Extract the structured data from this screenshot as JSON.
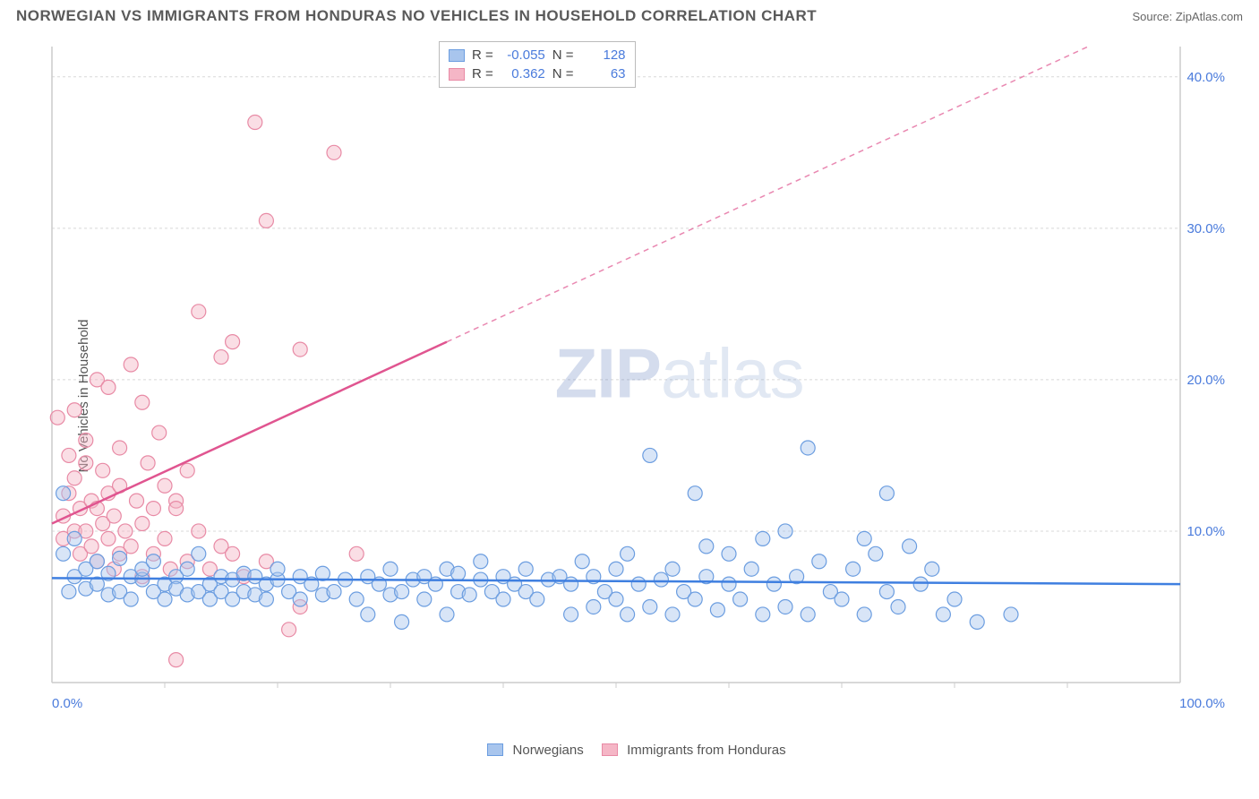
{
  "title": "NORWEGIAN VS IMMIGRANTS FROM HONDURAS NO VEHICLES IN HOUSEHOLD CORRELATION CHART",
  "source": "Source: ZipAtlas.com",
  "y_axis_label": "No Vehicles in Household",
  "watermark_a": "ZIP",
  "watermark_b": "atlas",
  "chart": {
    "type": "scatter",
    "xlim": [
      0,
      100
    ],
    "ylim": [
      0,
      42
    ],
    "x_ticks": [
      0,
      100
    ],
    "x_tick_labels": [
      "0.0%",
      "100.0%"
    ],
    "x_minor_ticks": [
      10,
      20,
      30,
      40,
      50,
      60,
      70,
      80,
      90
    ],
    "y_ticks": [
      10,
      20,
      30,
      40
    ],
    "y_tick_labels": [
      "10.0%",
      "20.0%",
      "30.0%",
      "40.0%"
    ],
    "grid_color": "#d8d8d8",
    "axis_color": "#cccccc",
    "background_color": "#ffffff",
    "marker_radius": 8,
    "marker_opacity": 0.45,
    "line_width": 2.5,
    "series": [
      {
        "name": "Norwegians",
        "color_fill": "#a8c5ed",
        "color_stroke": "#6b9de0",
        "R": "-0.055",
        "N": "128",
        "trend": {
          "x1": 0,
          "y1": 6.9,
          "x2": 100,
          "y2": 6.5,
          "color": "#3f7fe0"
        },
        "points": [
          [
            1,
            12.5
          ],
          [
            1,
            8.5
          ],
          [
            2,
            7.0
          ],
          [
            2,
            9.5
          ],
          [
            1.5,
            6.0
          ],
          [
            3,
            7.5
          ],
          [
            3,
            6.2
          ],
          [
            4,
            8.0
          ],
          [
            4,
            6.5
          ],
          [
            5,
            7.2
          ],
          [
            5,
            5.8
          ],
          [
            6,
            6.0
          ],
          [
            6,
            8.2
          ],
          [
            7,
            7.0
          ],
          [
            7,
            5.5
          ],
          [
            8,
            6.8
          ],
          [
            8,
            7.5
          ],
          [
            9,
            6.0
          ],
          [
            9,
            8.0
          ],
          [
            10,
            6.5
          ],
          [
            10,
            5.5
          ],
          [
            11,
            7.0
          ],
          [
            11,
            6.2
          ],
          [
            12,
            5.8
          ],
          [
            12,
            7.5
          ],
          [
            13,
            6.0
          ],
          [
            13,
            8.5
          ],
          [
            14,
            6.5
          ],
          [
            14,
            5.5
          ],
          [
            15,
            7.0
          ],
          [
            15,
            6.0
          ],
          [
            16,
            6.8
          ],
          [
            16,
            5.5
          ],
          [
            17,
            7.2
          ],
          [
            17,
            6.0
          ],
          [
            18,
            5.8
          ],
          [
            18,
            7.0
          ],
          [
            19,
            6.5
          ],
          [
            19,
            5.5
          ],
          [
            20,
            6.8
          ],
          [
            20,
            7.5
          ],
          [
            21,
            6.0
          ],
          [
            22,
            5.5
          ],
          [
            22,
            7.0
          ],
          [
            23,
            6.5
          ],
          [
            24,
            5.8
          ],
          [
            24,
            7.2
          ],
          [
            25,
            6.0
          ],
          [
            26,
            6.8
          ],
          [
            27,
            5.5
          ],
          [
            28,
            7.0
          ],
          [
            28,
            4.5
          ],
          [
            29,
            6.5
          ],
          [
            30,
            5.8
          ],
          [
            30,
            7.5
          ],
          [
            31,
            6.0
          ],
          [
            31,
            4.0
          ],
          [
            32,
            6.8
          ],
          [
            33,
            5.5
          ],
          [
            33,
            7.0
          ],
          [
            34,
            6.5
          ],
          [
            35,
            4.5
          ],
          [
            35,
            7.5
          ],
          [
            36,
            6.0
          ],
          [
            36,
            7.2
          ],
          [
            37,
            5.8
          ],
          [
            38,
            6.8
          ],
          [
            38,
            8.0
          ],
          [
            39,
            6.0
          ],
          [
            40,
            7.0
          ],
          [
            40,
            5.5
          ],
          [
            41,
            6.5
          ],
          [
            42,
            7.5
          ],
          [
            42,
            6.0
          ],
          [
            43,
            5.5
          ],
          [
            44,
            6.8
          ],
          [
            45,
            7.0
          ],
          [
            46,
            4.5
          ],
          [
            46,
            6.5
          ],
          [
            47,
            8.0
          ],
          [
            48,
            5.0
          ],
          [
            48,
            7.0
          ],
          [
            49,
            6.0
          ],
          [
            50,
            5.5
          ],
          [
            50,
            7.5
          ],
          [
            51,
            4.5
          ],
          [
            51,
            8.5
          ],
          [
            52,
            6.5
          ],
          [
            53,
            5.0
          ],
          [
            53,
            15.0
          ],
          [
            54,
            6.8
          ],
          [
            55,
            7.5
          ],
          [
            55,
            4.5
          ],
          [
            56,
            6.0
          ],
          [
            57,
            5.5
          ],
          [
            57,
            12.5
          ],
          [
            58,
            7.0
          ],
          [
            59,
            4.8
          ],
          [
            60,
            6.5
          ],
          [
            60,
            8.5
          ],
          [
            61,
            5.5
          ],
          [
            62,
            7.5
          ],
          [
            63,
            4.5
          ],
          [
            63,
            9.5
          ],
          [
            64,
            6.5
          ],
          [
            65,
            5.0
          ],
          [
            66,
            7.0
          ],
          [
            67,
            15.5
          ],
          [
            67,
            4.5
          ],
          [
            68,
            8.0
          ],
          [
            69,
            6.0
          ],
          [
            70,
            5.5
          ],
          [
            71,
            7.5
          ],
          [
            72,
            4.5
          ],
          [
            73,
            8.5
          ],
          [
            74,
            12.5
          ],
          [
            74,
            6.0
          ],
          [
            75,
            5.0
          ],
          [
            76,
            9.0
          ],
          [
            77,
            6.5
          ],
          [
            78,
            7.5
          ],
          [
            79,
            4.5
          ],
          [
            80,
            5.5
          ],
          [
            82,
            4.0
          ],
          [
            85,
            4.5
          ],
          [
            72,
            9.5
          ],
          [
            65,
            10.0
          ],
          [
            58,
            9.0
          ]
        ]
      },
      {
        "name": "Immigrants from Honduras",
        "color_fill": "#f5b6c6",
        "color_stroke": "#e88aa5",
        "R": "0.362",
        "N": "63",
        "trend": {
          "x1": 0,
          "y1": 10.5,
          "x2": 35,
          "y2": 22.5,
          "color": "#e05590",
          "extend_x2": 100,
          "extend_y2": 44.8
        },
        "points": [
          [
            0.5,
            17.5
          ],
          [
            1,
            11.0
          ],
          [
            1,
            9.5
          ],
          [
            1.5,
            15.0
          ],
          [
            1.5,
            12.5
          ],
          [
            2,
            10.0
          ],
          [
            2,
            13.5
          ],
          [
            2,
            18.0
          ],
          [
            2.5,
            8.5
          ],
          [
            2.5,
            11.5
          ],
          [
            3,
            14.5
          ],
          [
            3,
            10.0
          ],
          [
            3,
            16.0
          ],
          [
            3.5,
            9.0
          ],
          [
            3.5,
            12.0
          ],
          [
            4,
            20.0
          ],
          [
            4,
            8.0
          ],
          [
            4,
            11.5
          ],
          [
            4.5,
            10.5
          ],
          [
            4.5,
            14.0
          ],
          [
            5,
            19.5
          ],
          [
            5,
            9.5
          ],
          [
            5,
            12.5
          ],
          [
            5.5,
            7.5
          ],
          [
            5.5,
            11.0
          ],
          [
            6,
            15.5
          ],
          [
            6,
            8.5
          ],
          [
            6,
            13.0
          ],
          [
            6.5,
            10.0
          ],
          [
            7,
            21.0
          ],
          [
            7,
            9.0
          ],
          [
            7.5,
            12.0
          ],
          [
            8,
            18.5
          ],
          [
            8,
            7.0
          ],
          [
            8,
            10.5
          ],
          [
            8.5,
            14.5
          ],
          [
            9,
            8.5
          ],
          [
            9,
            11.5
          ],
          [
            9.5,
            16.5
          ],
          [
            10,
            9.5
          ],
          [
            10,
            13.0
          ],
          [
            10.5,
            7.5
          ],
          [
            11,
            12.0
          ],
          [
            11,
            11.5
          ],
          [
            12,
            14.0
          ],
          [
            12,
            8.0
          ],
          [
            13,
            24.5
          ],
          [
            13,
            10.0
          ],
          [
            14,
            7.5
          ],
          [
            15,
            9.0
          ],
          [
            15,
            21.5
          ],
          [
            16,
            8.5
          ],
          [
            16,
            22.5
          ],
          [
            17,
            7.0
          ],
          [
            18,
            37.0
          ],
          [
            19,
            8.0
          ],
          [
            19,
            30.5
          ],
          [
            21,
            3.5
          ],
          [
            22,
            5.0
          ],
          [
            22,
            22.0
          ],
          [
            11,
            1.5
          ],
          [
            25,
            35.0
          ],
          [
            27,
            8.5
          ]
        ]
      }
    ]
  },
  "legend": {
    "series1_label": "Norwegians",
    "series2_label": "Immigrants from Honduras"
  },
  "stats": {
    "r_label": "R  =",
    "n_label": "N  ="
  }
}
